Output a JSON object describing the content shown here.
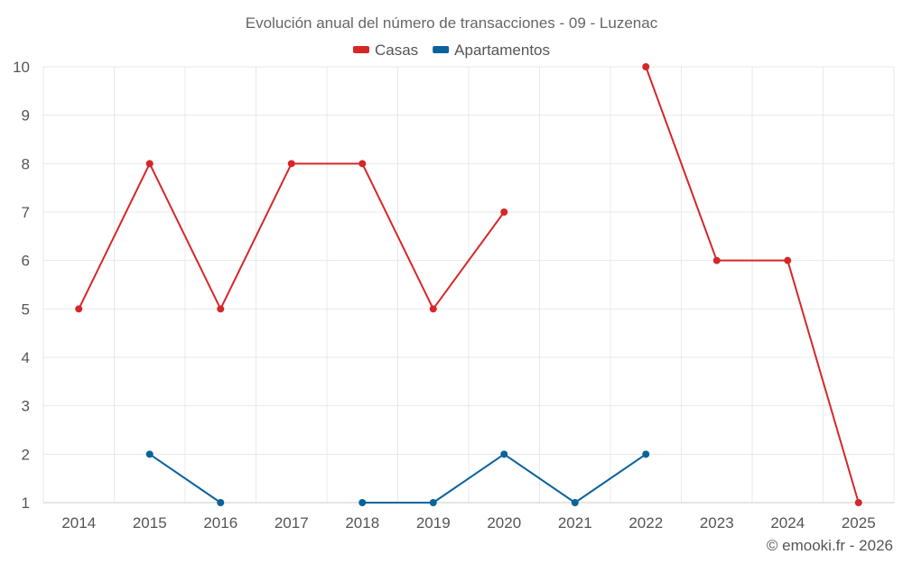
{
  "chart_data": {
    "type": "line",
    "title": "Evolución anual del número de transacciones - 09 - Luzenac",
    "categories": [
      "2014",
      "2015",
      "2016",
      "2017",
      "2018",
      "2019",
      "2020",
      "2021",
      "2022",
      "2023",
      "2024",
      "2025"
    ],
    "ylim": [
      1,
      10
    ],
    "yticks": [
      1,
      2,
      3,
      4,
      5,
      6,
      7,
      8,
      9,
      10
    ],
    "grid": true,
    "legend_position": "top-center",
    "series": [
      {
        "name": "Casas",
        "color": "#d62728",
        "values": [
          5,
          8,
          5,
          8,
          8,
          5,
          7,
          null,
          10,
          6,
          6,
          1
        ]
      },
      {
        "name": "Apartamentos",
        "color": "#08639c",
        "values": [
          null,
          2,
          1,
          null,
          1,
          1,
          2,
          1,
          2,
          null,
          null,
          null
        ]
      }
    ],
    "credit": "© emooki.fr - 2026"
  }
}
